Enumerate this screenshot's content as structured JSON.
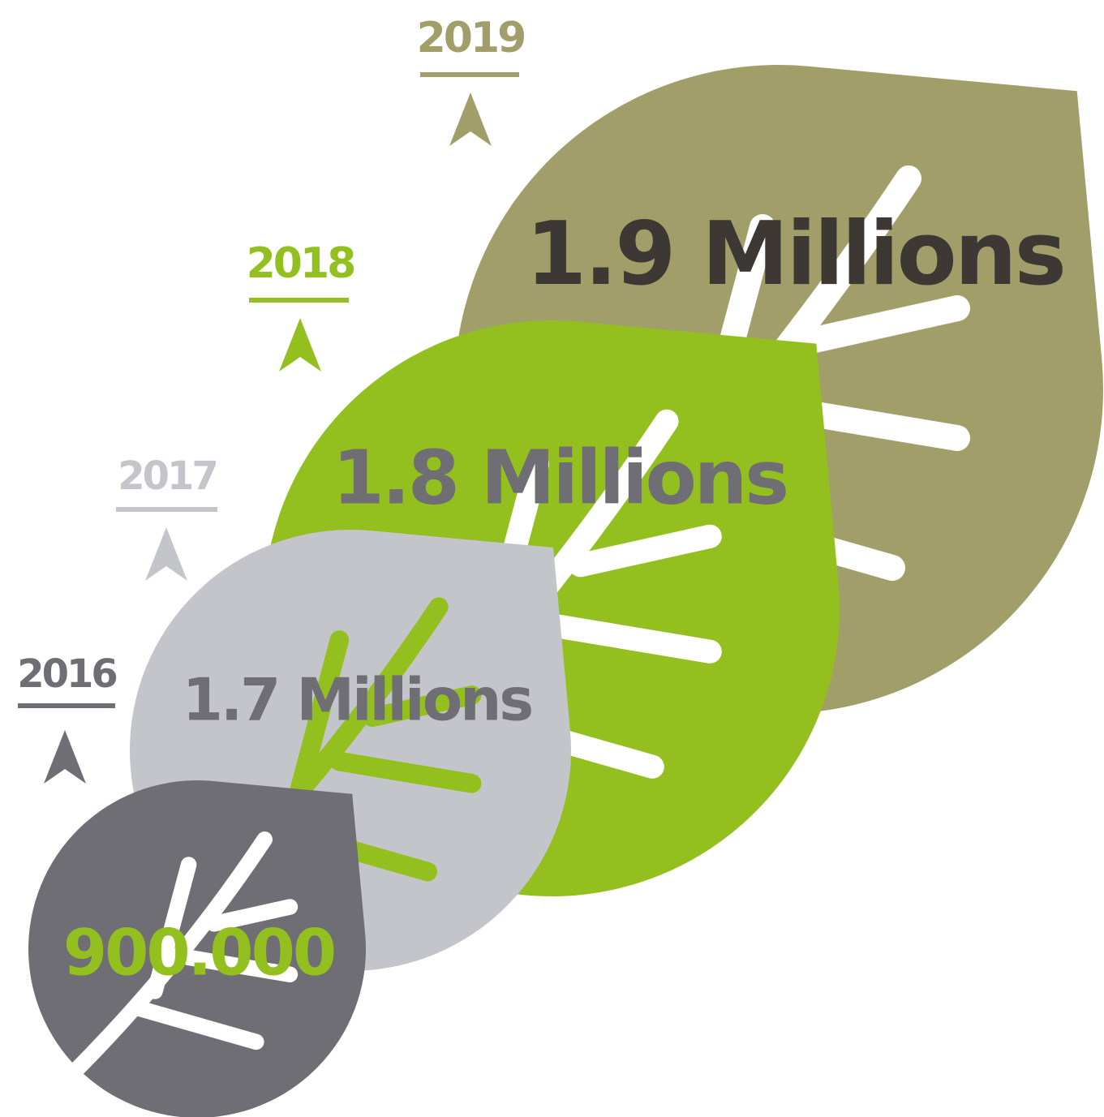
{
  "items": [
    {
      "year": "2019",
      "value": "1.9 Millions"
    },
    {
      "year": "2018",
      "value": "1.8 Millions"
    },
    {
      "year": "2017",
      "value": "1.7 Millions"
    },
    {
      "year": "2016",
      "value": "900.000"
    }
  ]
}
